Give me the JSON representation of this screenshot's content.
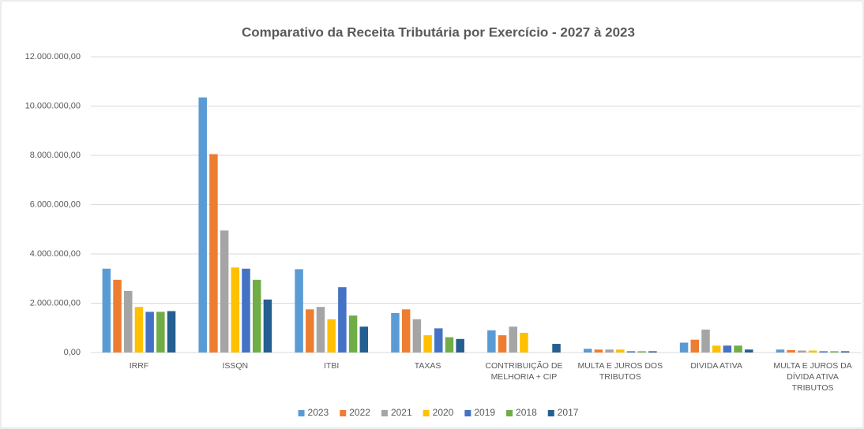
{
  "chart_data": {
    "type": "bar",
    "title": "Comparativo da Receita Tributária por Exercício - 2027 à 2023",
    "categories": [
      "IRRF",
      "ISSQN",
      "ITBI",
      "TAXAS",
      "CONTRIBUIÇÃO DE MELHORIA + CIP",
      "MULTA E JUROS DOS TRIBUTOS",
      "DIVIDA ATIVA",
      "MULTA E JUROS DA DÍVIDA ATIVA TRIBUTOS"
    ],
    "series": [
      {
        "name": "2023",
        "color": "#5b9bd5",
        "values": [
          3400000,
          10350000,
          3380000,
          1600000,
          900000,
          150000,
          400000,
          120000
        ]
      },
      {
        "name": "2022",
        "color": "#ed7d31",
        "values": [
          2950000,
          8050000,
          1750000,
          1750000,
          700000,
          120000,
          520000,
          100000
        ]
      },
      {
        "name": "2021",
        "color": "#a5a5a5",
        "values": [
          2500000,
          4950000,
          1850000,
          1350000,
          1050000,
          120000,
          930000,
          80000
        ]
      },
      {
        "name": "2020",
        "color": "#ffc000",
        "values": [
          1850000,
          3450000,
          1350000,
          700000,
          800000,
          120000,
          280000,
          80000
        ]
      },
      {
        "name": "2019",
        "color": "#4472c4",
        "values": [
          1650000,
          3400000,
          2650000,
          980000,
          0,
          50000,
          280000,
          50000
        ]
      },
      {
        "name": "2018",
        "color": "#70ad47",
        "values": [
          1650000,
          2950000,
          1500000,
          620000,
          0,
          50000,
          280000,
          50000
        ]
      },
      {
        "name": "2017",
        "color": "#255e91",
        "values": [
          1680000,
          2150000,
          1050000,
          550000,
          350000,
          50000,
          120000,
          50000
        ]
      }
    ],
    "ylim": [
      0,
      12000000
    ],
    "yticks": [
      {
        "value": 0,
        "label": "0,00"
      },
      {
        "value": 2000000,
        "label": "2.000.000,00"
      },
      {
        "value": 4000000,
        "label": "4.000.000,00"
      },
      {
        "value": 6000000,
        "label": "6.000.000,00"
      },
      {
        "value": 8000000,
        "label": "8.000.000,00"
      },
      {
        "value": 10000000,
        "label": "10.000.000,00"
      },
      {
        "value": 12000000,
        "label": "12.000.000,00"
      }
    ],
    "grid": true,
    "legend": "bottom"
  }
}
